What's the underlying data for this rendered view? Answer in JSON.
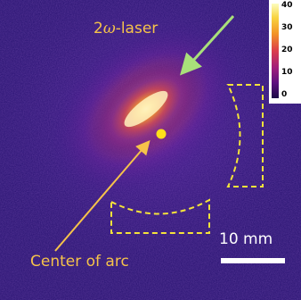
{
  "labels": {
    "laser_prefix": "2",
    "laser_omega": "ω",
    "laser_suffix": "-laser",
    "center": "Center of arc",
    "scale": "10 mm"
  },
  "colorbar": {
    "ticks": [
      "40",
      "30",
      "20",
      "10",
      "0"
    ]
  },
  "colors": {
    "annotation": "#f6c34a",
    "laser_arrow": "#a9e07a",
    "dashed_outline": "#f5e33a",
    "scale_bar": "#ffffff",
    "background": "#2a0f78"
  }
}
